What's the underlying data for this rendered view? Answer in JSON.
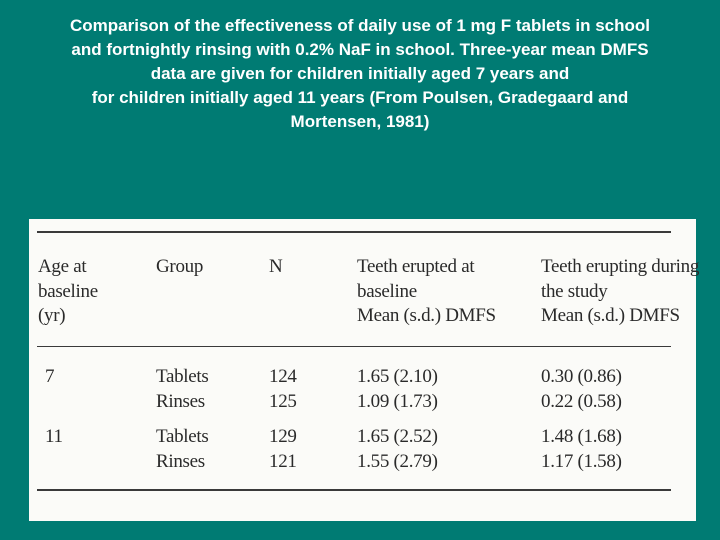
{
  "slide": {
    "title_lines": [
      "Comparison of the effectiveness of daily use of 1 mg F tablets in school",
      "and fortnightly rinsing with 0.2% NaF in school. Three-year mean DMFS",
      "data are given for children initially aged 7 years and",
      "for children initially aged 11 years (From Poulsen, Gradegaard and",
      "Mortensen, 1981)"
    ]
  },
  "table": {
    "headers": {
      "age": [
        "Age at",
        "baseline",
        "(yr)"
      ],
      "group": "Group",
      "n": "N",
      "erupted": [
        "Teeth erupted at",
        "baseline",
        "Mean (s.d.) DMFS"
      ],
      "erupting": [
        "Teeth erupting during",
        "the study",
        "Mean (s.d.) DMFS"
      ]
    },
    "rows": [
      {
        "age": "7",
        "group": "Tablets",
        "n": "124",
        "erupted": "1.65 (2.10)",
        "erupting": "0.30 (0.86)"
      },
      {
        "age": "",
        "group": "Rinses",
        "n": "125",
        "erupted": "1.09 (1.73)",
        "erupting": "0.22 (0.58)"
      },
      {
        "age": "11",
        "group": "Tablets",
        "n": "129",
        "erupted": "1.65 (2.52)",
        "erupting": "1.48 (1.68)"
      },
      {
        "age": "",
        "group": "Rinses",
        "n": "121",
        "erupted": "1.55 (2.79)",
        "erupting": "1.17 (1.58)"
      }
    ]
  }
}
